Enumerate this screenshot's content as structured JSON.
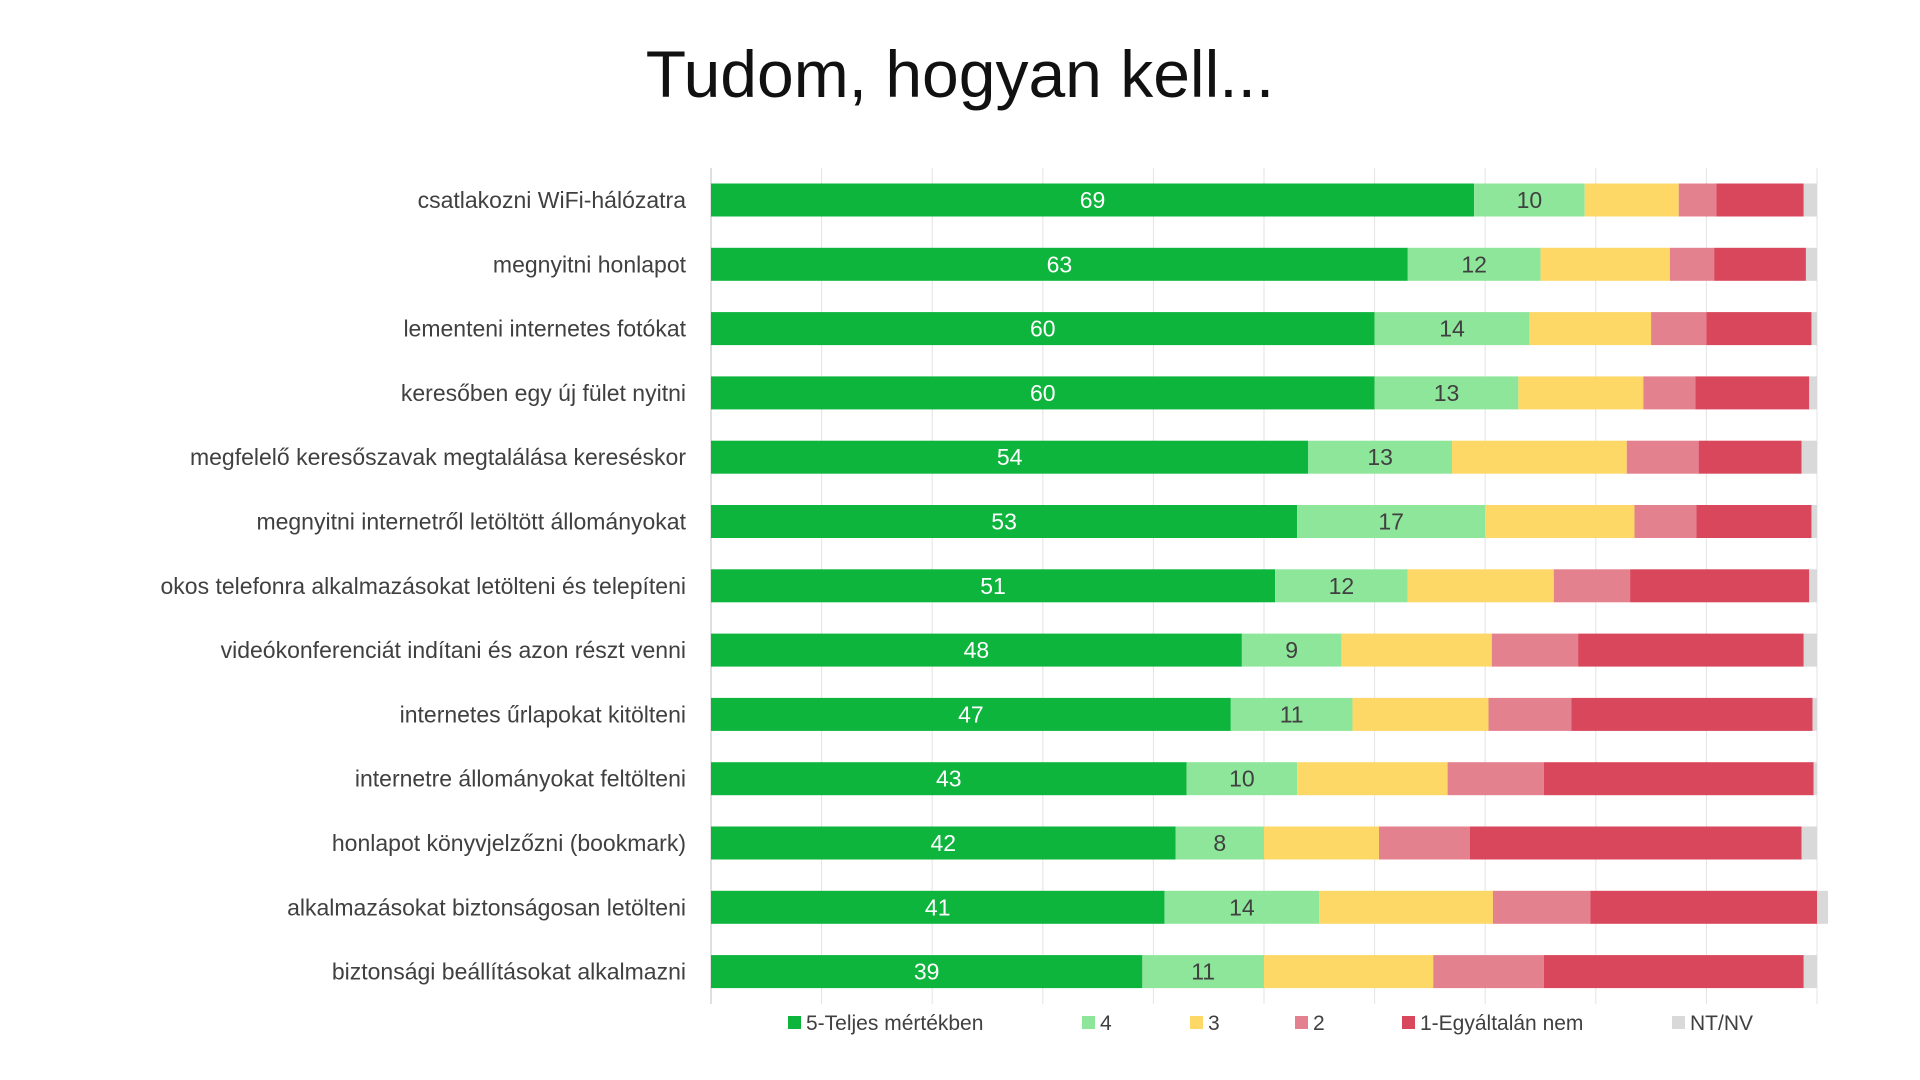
{
  "chart_data": {
    "type": "bar",
    "orientation": "horizontal",
    "stacked": "percent",
    "title": "Tudom, hogyan kell...",
    "categories": [
      "csatlakozni WiFi-hálózatra",
      "megnyitni honlapot",
      "lementeni internetes fotókat",
      "keresőben egy új fület nyitni",
      "megfelelő keresőszavak megtalálása kereséskor",
      "megnyitni internetről letöltött állományokat",
      "okos telefonra alkalmazásokat letölteni és telepíteni",
      "videókonferenciát indítani és azon részt venni",
      "internetes űrlapokat kitölteni",
      "internetre állományokat feltölteni",
      "honlapot könyvjelzőzni (bookmark)",
      "alkalmazásokat biztonságosan letölteni",
      "biztonsági beállításokat alkalmazni"
    ],
    "series": [
      {
        "name": "5-Teljes mértékben",
        "color": "#0db53d",
        "label_color": "#ffffff",
        "values": [
          69,
          63,
          60,
          60,
          54,
          53,
          51,
          48,
          47,
          43,
          42,
          41,
          39
        ],
        "labeled": true
      },
      {
        "name": "4",
        "color": "#8ee69a",
        "label_color": "#404040",
        "values": [
          10,
          12,
          14,
          13,
          13,
          17,
          12,
          9,
          11,
          10,
          8,
          14,
          11
        ],
        "labeled": true
      },
      {
        "name": "3",
        "color": "#fdd866",
        "label_color": "#404040",
        "values": [
          8.5,
          11.7,
          11,
          11.3,
          15.8,
          13.5,
          13.2,
          13.6,
          12.3,
          13.6,
          10.4,
          15.7,
          15.3
        ],
        "labeled": false
      },
      {
        "name": "2",
        "color": "#e4818e",
        "label_color": "#404040",
        "values": [
          3.4,
          4,
          5,
          4.7,
          6.5,
          5.6,
          6.9,
          7.8,
          7.5,
          8.7,
          8.2,
          8.8,
          10
        ],
        "labeled": false
      },
      {
        "name": "1-Egyáltalán nem",
        "color": "#d9475c",
        "label_color": "#404040",
        "values": [
          7.9,
          8.3,
          9.5,
          10.3,
          9.3,
          10.4,
          16.2,
          20.4,
          21.8,
          24.4,
          30,
          20.5,
          23.5
        ],
        "labeled": false
      },
      {
        "name": "NT/NV",
        "color": "#d9d9d9",
        "label_color": "#404040",
        "values": [
          1.2,
          1,
          0.5,
          0.7,
          1.4,
          0.5,
          0.7,
          1.2,
          0.4,
          0.3,
          1.4,
          1,
          1.2
        ],
        "labeled": false
      }
    ],
    "xlim": [
      0,
      100
    ],
    "grid": true,
    "legend": "bottom"
  }
}
